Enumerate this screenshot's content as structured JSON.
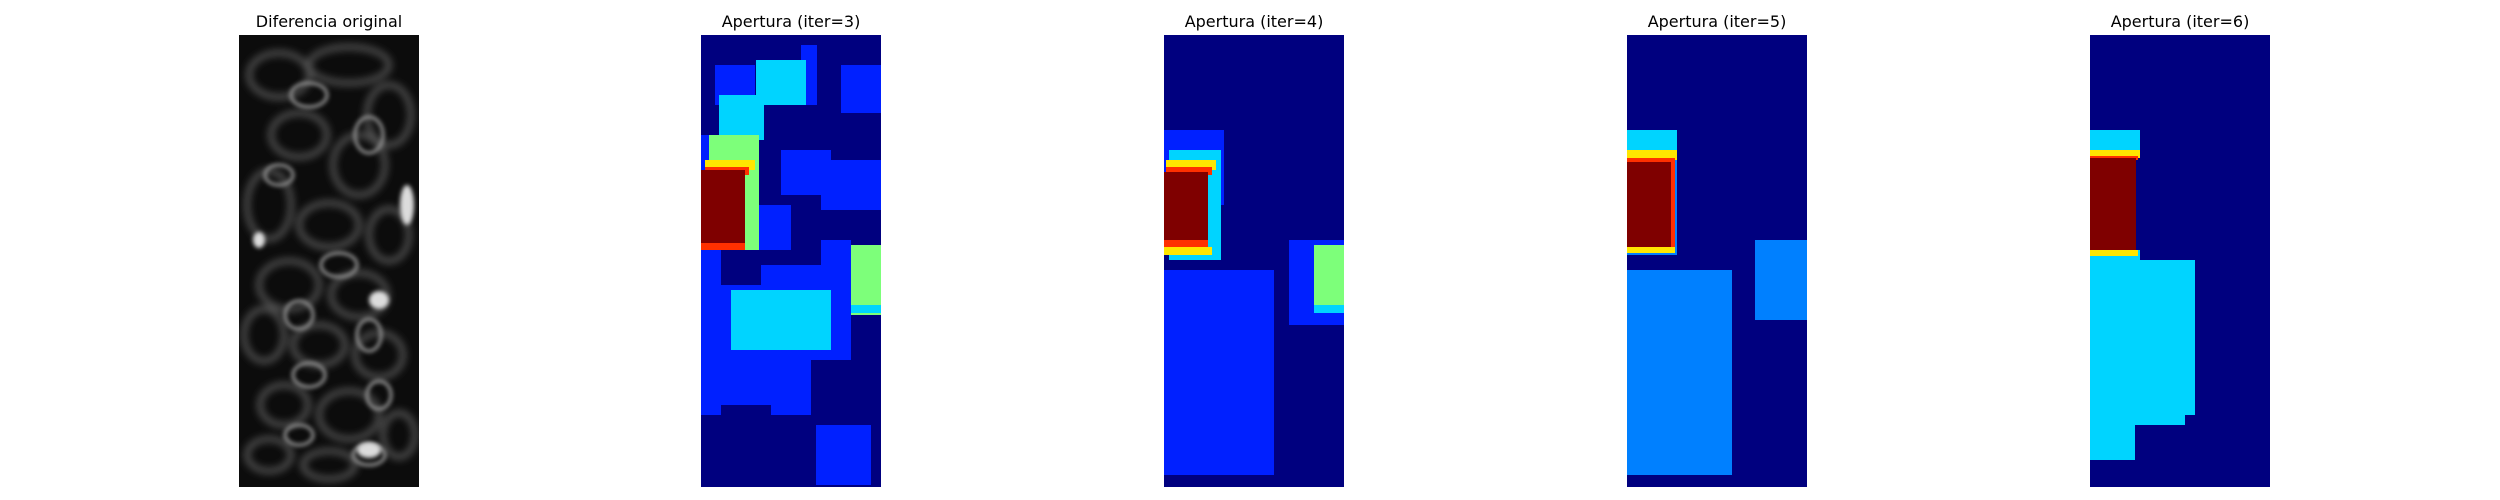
{
  "figure": {
    "panels": [
      {
        "title": "Diferencia original",
        "kind": "grayscale-image"
      },
      {
        "title": "Apertura (iter=3)",
        "kind": "jet-colormap-label-map"
      },
      {
        "title": "Apertura (iter=4)",
        "kind": "jet-colormap-label-map"
      },
      {
        "title": "Apertura (iter=5)",
        "kind": "jet-colormap-label-map"
      },
      {
        "title": "Apertura (iter=6)",
        "kind": "jet-colormap-label-map"
      }
    ],
    "colors": {
      "jet_background": "#00007f",
      "jet_blue": "#0020ff",
      "jet_mid_blue": "#0080ff",
      "jet_cyan": "#00d4ff",
      "jet_green": "#7dff7a",
      "jet_yellow": "#ffe600",
      "jet_orange": "#ff3000",
      "jet_dark_red": "#7f0000"
    }
  }
}
